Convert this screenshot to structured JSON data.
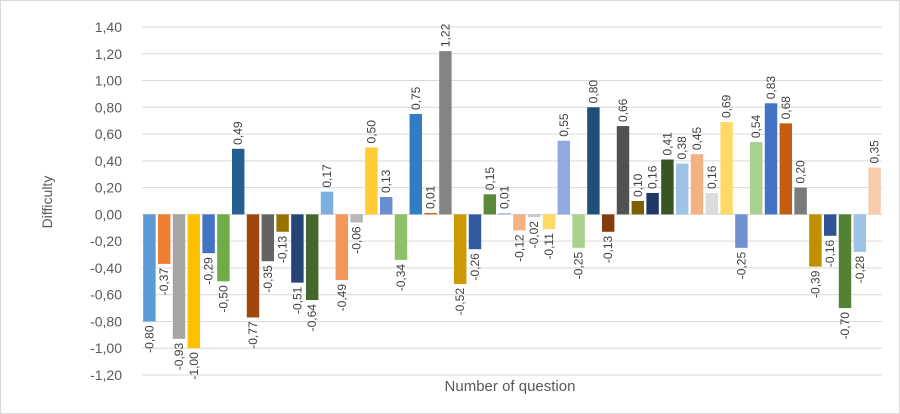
{
  "chart_data": {
    "type": "bar",
    "ylabel": "Difficulty",
    "xlabel": "Number of question",
    "values": [
      -0.8,
      -0.37,
      -0.93,
      -1.0,
      -0.29,
      -0.5,
      0.49,
      -0.77,
      -0.35,
      -0.13,
      -0.51,
      -0.64,
      0.17,
      -0.49,
      -0.06,
      0.5,
      0.13,
      -0.34,
      0.75,
      0.01,
      1.22,
      -0.52,
      -0.26,
      0.15,
      0.01,
      -0.12,
      -0.02,
      -0.11,
      0.55,
      -0.25,
      0.8,
      -0.13,
      0.66,
      0.1,
      0.16,
      0.41,
      0.38,
      0.45,
      0.16,
      0.69,
      -0.25,
      0.54,
      0.83,
      0.68,
      0.2,
      -0.39,
      -0.16,
      -0.7,
      -0.28,
      0.35
    ],
    "value_labels": [
      "-0,80",
      "-0,37",
      "-0,93",
      "-1,00",
      "-0,29",
      "-0,50",
      "0,49",
      "-0,77",
      "-0,35",
      "-0,13",
      "-0,51",
      "-0,64",
      "0,17",
      "-0,49",
      "-0,06",
      "0,50",
      "0,13",
      "-0,34",
      "0,75",
      "0,01",
      "1,22",
      "-0,52",
      "-0,26",
      "0,15",
      "0,01",
      "-0,12",
      "-0,02",
      "-0,11",
      "0,55",
      "-0,25",
      "0,80",
      "-0,13",
      "0,66",
      "0,10",
      "0,16",
      "0,41",
      "0,38",
      "0,45",
      "0,16",
      "0,69",
      "-0,25",
      "0,54",
      "0,83",
      "0,68",
      "0,20",
      "-0,39",
      "-0,16",
      "-0,70",
      "-0,28",
      "0,35"
    ],
    "colors": [
      "#5b9bd5",
      "#ed7d31",
      "#a5a5a5",
      "#ffc000",
      "#4472c4",
      "#70ad47",
      "#255e91",
      "#9e480e",
      "#636363",
      "#997300",
      "#264478",
      "#43682b",
      "#7cafdd",
      "#f1975a",
      "#b7b7b7",
      "#ffcd33",
      "#698ed0",
      "#8cc168",
      "#327dc2",
      "#d26012",
      "#848484",
      "#cc9a00",
      "#335aa1",
      "#5a8a39",
      "#9dc3e6",
      "#f4b183",
      "#c9c9c9",
      "#ffd966",
      "#8faadc",
      "#a9d18e",
      "#1f4e79",
      "#843c0c",
      "#525252",
      "#7f6000",
      "#203864",
      "#375623",
      "#9dc3e6",
      "#f4b183",
      "#dbdbdb",
      "#ffd966",
      "#6f8fd0",
      "#a9d18e",
      "#4472c4",
      "#c55a11",
      "#7b7b7b",
      "#bf9000",
      "#2f5597",
      "#548235",
      "#9dc3e6",
      "#f8cbad"
    ],
    "ylim": [
      -1.2,
      1.4
    ],
    "yticks": [
      {
        "value": 1.4,
        "label": "1,40"
      },
      {
        "value": 1.2,
        "label": "1,20"
      },
      {
        "value": 1.0,
        "label": "1,00"
      },
      {
        "value": 0.8,
        "label": "0,80"
      },
      {
        "value": 0.6,
        "label": "0,60"
      },
      {
        "value": 0.4,
        "label": "0,40"
      },
      {
        "value": 0.2,
        "label": "0,20"
      },
      {
        "value": 0,
        "label": "0,00"
      },
      {
        "value": -0.2,
        "label": "-0,20"
      },
      {
        "value": -0.4,
        "label": "-0,40"
      },
      {
        "value": -0.6,
        "label": "-0,60"
      },
      {
        "value": -0.8,
        "label": "-0,80"
      },
      {
        "value": -1.0,
        "label": "-1,00"
      },
      {
        "value": -1.2,
        "label": "-1,20"
      }
    ],
    "grid": true
  }
}
